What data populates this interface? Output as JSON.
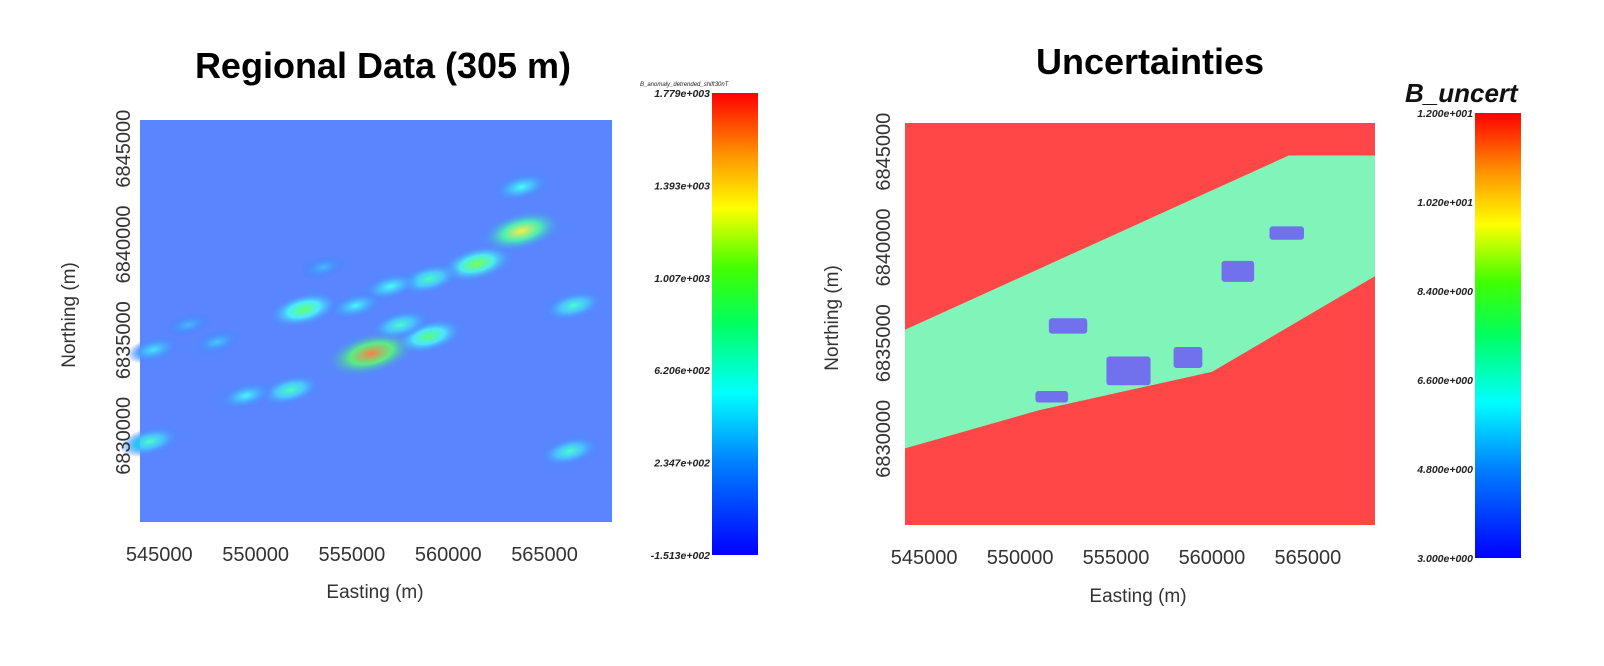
{
  "chart_data": [
    {
      "type": "heatmap",
      "title": "Regional Data (305 m)",
      "xlabel": "Easting (m)",
      "ylabel": "Northing (m)",
      "xticks": [
        "545000",
        "550000",
        "555000",
        "560000",
        "565000"
      ],
      "yticks": [
        "6830000",
        "6835000",
        "6840000",
        "6845000"
      ],
      "xlim": [
        544000,
        568500
      ],
      "ylim": [
        6825500,
        6846500
      ],
      "colorbar": {
        "title": "B_anomaly_detrended_shift30nT",
        "range": [
          -151.3,
          1779
        ],
        "ticks": [
          "1.779e+003",
          "1.393e+003",
          "1.007e+003",
          "6.206e+002",
          "2.347e+002",
          "-1.513e+002"
        ]
      },
      "background_value": 60,
      "anomalies": [
        {
          "x": 556000,
          "y": 6834300,
          "value": 1650
        },
        {
          "x": 559000,
          "y": 6835200,
          "value": 900
        },
        {
          "x": 552500,
          "y": 6836600,
          "value": 950
        },
        {
          "x": 557500,
          "y": 6835800,
          "value": 650
        },
        {
          "x": 555200,
          "y": 6836800,
          "value": 500
        },
        {
          "x": 561500,
          "y": 6839000,
          "value": 1050
        },
        {
          "x": 563800,
          "y": 6840700,
          "value": 1350
        },
        {
          "x": 559000,
          "y": 6838200,
          "value": 700
        },
        {
          "x": 557000,
          "y": 6837800,
          "value": 550
        },
        {
          "x": 563800,
          "y": 6843000,
          "value": 550
        },
        {
          "x": 551800,
          "y": 6832400,
          "value": 700
        },
        {
          "x": 549500,
          "y": 6832100,
          "value": 500
        },
        {
          "x": 566500,
          "y": 6836800,
          "value": 650
        },
        {
          "x": 566300,
          "y": 6829200,
          "value": 650
        },
        {
          "x": 544500,
          "y": 6829700,
          "value": 650
        },
        {
          "x": 544700,
          "y": 6834500,
          "value": 450
        },
        {
          "x": 548000,
          "y": 6834900,
          "value": 350
        },
        {
          "x": 546500,
          "y": 6835800,
          "value": 300
        },
        {
          "x": 553500,
          "y": 6838800,
          "value": 300
        }
      ]
    },
    {
      "type": "heatmap",
      "title": "Uncertainties",
      "xlabel": "Easting (m)",
      "ylabel": "Northing (m)",
      "xticks": [
        "545000",
        "550000",
        "555000",
        "560000",
        "565000"
      ],
      "yticks": [
        "6830000",
        "6835000",
        "6840000",
        "6845000"
      ],
      "xlim": [
        544000,
        568500
      ],
      "ylim": [
        6825500,
        6846500
      ],
      "colorbar": {
        "title": "B_uncert",
        "range": [
          3.0,
          12.0
        ],
        "ticks": [
          "1.200e+001",
          "1.020e+001",
          "8.400e+000",
          "6.600e+000",
          "4.800e+000",
          "3.000e+000"
        ]
      },
      "regions": {
        "outside_value": 12.0,
        "band_value": 5.6,
        "band_top_edge": [
          [
            544000,
            6835700
          ],
          [
            564000,
            6844800
          ],
          [
            568500,
            6844800
          ]
        ],
        "band_bottom_edge": [
          [
            544000,
            6829500
          ],
          [
            551000,
            6831500
          ],
          [
            560000,
            6833500
          ],
          [
            568500,
            6838500
          ]
        ],
        "low_value": 3.0,
        "low_patches": [
          {
            "x0": 551500,
            "x1": 553500,
            "y0": 6835500,
            "y1": 6836300
          },
          {
            "x0": 554500,
            "x1": 556800,
            "y0": 6832800,
            "y1": 6834300
          },
          {
            "x0": 558000,
            "x1": 559500,
            "y0": 6833700,
            "y1": 6834800
          },
          {
            "x0": 560500,
            "x1": 562200,
            "y0": 6838200,
            "y1": 6839300
          },
          {
            "x0": 563000,
            "x1": 564800,
            "y0": 6840400,
            "y1": 6841100
          },
          {
            "x0": 550800,
            "x1": 552500,
            "y0": 6831900,
            "y1": 6832500
          }
        ]
      }
    }
  ]
}
